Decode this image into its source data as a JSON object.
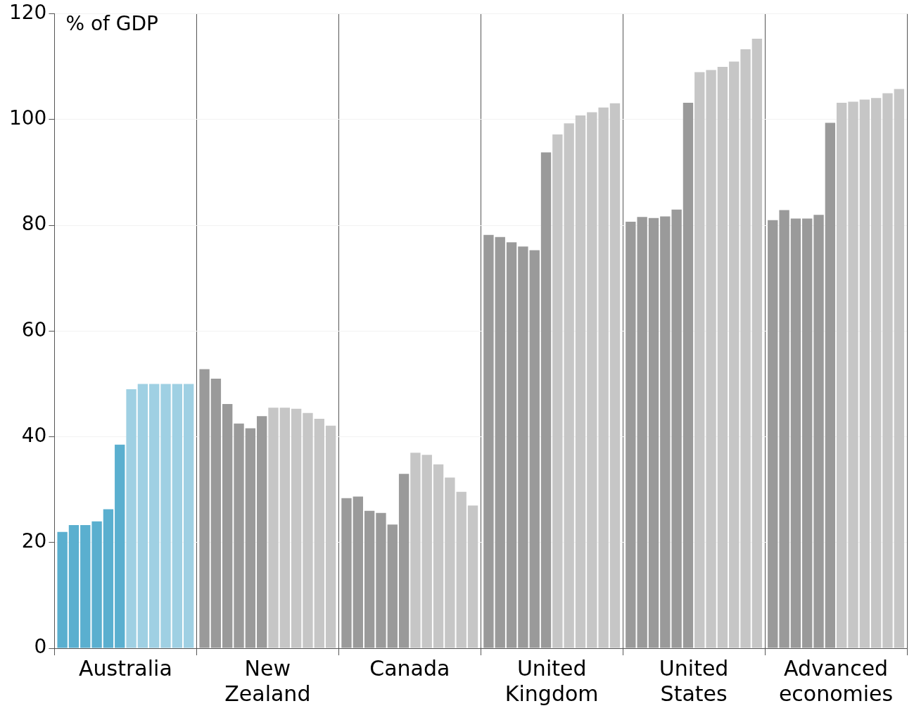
{
  "chart_data": {
    "type": "bar",
    "ylabel": "% of GDP",
    "categories": [
      "Australia",
      "New Zealand",
      "Canada",
      "United Kingdom",
      "United States",
      "Advanced economies"
    ],
    "series": [
      {
        "colors": [
          "#5aafcf",
          "#9a9a9a",
          "#9a9a9a",
          "#9a9a9a",
          "#9a9a9a",
          "#9a9a9a"
        ],
        "values": [
          22,
          52.8,
          28.4,
          78.2,
          80.7,
          81
        ]
      },
      {
        "colors": [
          "#5aafcf",
          "#9a9a9a",
          "#9a9a9a",
          "#9a9a9a",
          "#9a9a9a",
          "#9a9a9a"
        ],
        "values": [
          23.3,
          51,
          28.7,
          77.8,
          81.6,
          82.9
        ]
      },
      {
        "colors": [
          "#5aafcf",
          "#9a9a9a",
          "#9a9a9a",
          "#9a9a9a",
          "#9a9a9a",
          "#9a9a9a"
        ],
        "values": [
          23.3,
          46.2,
          26,
          76.8,
          81.4,
          81.3
        ]
      },
      {
        "colors": [
          "#5aafcf",
          "#9a9a9a",
          "#9a9a9a",
          "#9a9a9a",
          "#9a9a9a",
          "#9a9a9a"
        ],
        "values": [
          24,
          42.5,
          25.6,
          76,
          81.7,
          81.3
        ]
      },
      {
        "colors": [
          "#5aafcf",
          "#9a9a9a",
          "#9a9a9a",
          "#9a9a9a",
          "#9a9a9a",
          "#9a9a9a"
        ],
        "values": [
          26.3,
          41.6,
          23.4,
          75.3,
          83,
          82
        ]
      },
      {
        "colors": [
          "#5aafcf",
          "#9a9a9a",
          "#9a9a9a",
          "#9a9a9a",
          "#9a9a9a",
          "#9a9a9a"
        ],
        "values": [
          38.5,
          43.9,
          33,
          93.8,
          103.2,
          99.4
        ]
      },
      {
        "colors": [
          "#9fd0e3",
          "#c6c6c6",
          "#c6c6c6",
          "#c6c6c6",
          "#c6c6c6",
          "#c6c6c6"
        ],
        "values": [
          49,
          45.5,
          37,
          97.2,
          109,
          103.2
        ]
      },
      {
        "colors": [
          "#9fd0e3",
          "#c6c6c6",
          "#c6c6c6",
          "#c6c6c6",
          "#c6c6c6",
          "#c6c6c6"
        ],
        "values": [
          50,
          45.5,
          36.6,
          99.3,
          109.4,
          103.4
        ]
      },
      {
        "colors": [
          "#9fd0e3",
          "#c6c6c6",
          "#c6c6c6",
          "#c6c6c6",
          "#c6c6c6",
          "#c6c6c6"
        ],
        "values": [
          50,
          45.3,
          34.8,
          100.8,
          110,
          103.8
        ]
      },
      {
        "colors": [
          "#9fd0e3",
          "#c6c6c6",
          "#c6c6c6",
          "#c6c6c6",
          "#c6c6c6",
          "#c6c6c6"
        ],
        "values": [
          50,
          44.5,
          32.3,
          101.4,
          111,
          104.1
        ]
      },
      {
        "colors": [
          "#9fd0e3",
          "#c6c6c6",
          "#c6c6c6",
          "#c6c6c6",
          "#c6c6c6",
          "#c6c6c6"
        ],
        "values": [
          50,
          43.4,
          29.6,
          102.3,
          113.3,
          105
        ]
      },
      {
        "colors": [
          "#9fd0e3",
          "#c6c6c6",
          "#c6c6c6",
          "#c6c6c6",
          "#c6c6c6",
          "#c6c6c6"
        ],
        "values": [
          50,
          42.1,
          27,
          103.1,
          115.3,
          105.8
        ]
      }
    ],
    "ylim": [
      0,
      120
    ],
    "yticks": [
      0,
      20,
      40,
      60,
      80,
      100,
      120
    ],
    "grid": true,
    "legend": false
  }
}
